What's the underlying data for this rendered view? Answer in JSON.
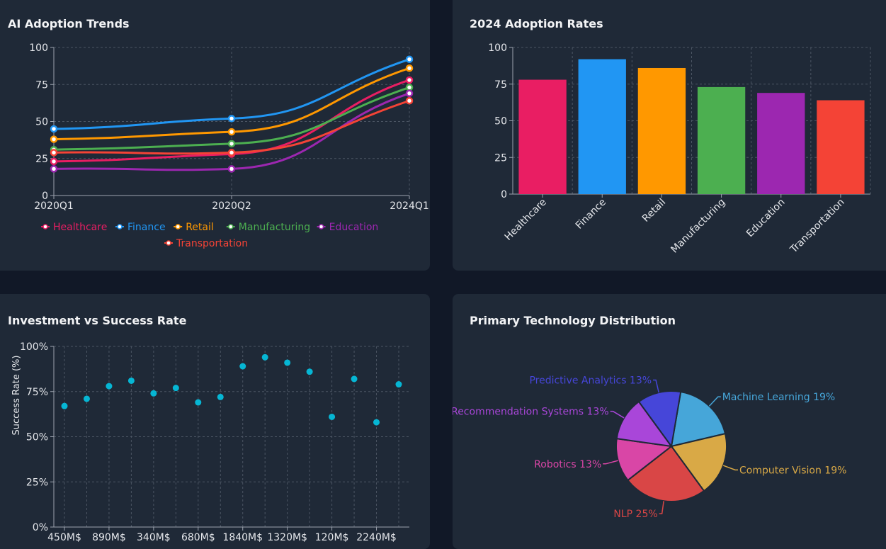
{
  "colors": {
    "background": "#111827",
    "card": "#1f2937",
    "grid": "#4b5563",
    "axis": "#9ca3af",
    "tick_text": "#e5e7eb",
    "scatter": "#06b6d4"
  },
  "chart_data": [
    {
      "id": "trends",
      "type": "line",
      "title": "AI Adoption Trends",
      "categories": [
        "2020Q1",
        "2020Q2",
        "2024Q1"
      ],
      "ylim": [
        0,
        100
      ],
      "yticks": [
        "0",
        "25",
        "50",
        "75",
        "100"
      ],
      "grid": true,
      "legend": "bottom",
      "series": [
        {
          "name": "Healthcare",
          "color": "#e91e63",
          "values": [
            23,
            28,
            78
          ]
        },
        {
          "name": "Finance",
          "color": "#2196f3",
          "values": [
            45,
            52,
            92
          ]
        },
        {
          "name": "Retail",
          "color": "#ff9800",
          "values": [
            38,
            43,
            86
          ]
        },
        {
          "name": "Manufacturing",
          "color": "#4caf50",
          "values": [
            31,
            35,
            73
          ]
        },
        {
          "name": "Education",
          "color": "#9c27b0",
          "values": [
            18,
            18,
            69
          ]
        },
        {
          "name": "Transportation",
          "color": "#f44336",
          "values": [
            29,
            29,
            64
          ]
        }
      ]
    },
    {
      "id": "rates",
      "type": "bar",
      "title": "2024 Adoption Rates",
      "categories": [
        "Healthcare",
        "Finance",
        "Retail",
        "Manufacturing",
        "Education",
        "Transportation"
      ],
      "values": [
        78,
        92,
        86,
        73,
        69,
        64
      ],
      "colors": [
        "#e91e63",
        "#2196f3",
        "#ff9800",
        "#4caf50",
        "#9c27b0",
        "#f44336"
      ],
      "ylim": [
        0,
        100
      ],
      "yticks": [
        "0",
        "25",
        "50",
        "75",
        "100"
      ],
      "grid": true
    },
    {
      "id": "investment",
      "type": "scatter",
      "title": "Investment vs Success Rate",
      "ylabel": "Success Rate (%)",
      "ylim": [
        0,
        100
      ],
      "yticks": [
        "0%",
        "25%",
        "50%",
        "75%",
        "100%"
      ],
      "xticks": [
        "450M$",
        "890M$",
        "340M$",
        "680M$",
        "1840M$",
        "1320M$",
        "120M$",
        "2240M$"
      ],
      "grid": true,
      "x": [
        1,
        2,
        3,
        4,
        5,
        6,
        7,
        8,
        9,
        10,
        11,
        12,
        13,
        14,
        15,
        16
      ],
      "values": [
        67,
        71,
        78,
        81,
        74,
        77,
        69,
        72,
        89,
        94,
        91,
        86,
        61,
        82,
        58,
        79
      ]
    },
    {
      "id": "distribution",
      "type": "pie",
      "title": "Primary Technology Distribution",
      "slices": [
        {
          "label": "Machine Learning 19%",
          "value": 19,
          "color": "#46a6d9"
        },
        {
          "label": "Computer Vision 19%",
          "value": 19,
          "color": "#d9a946"
        },
        {
          "label": "NLP 25%",
          "value": 25,
          "color": "#d94646"
        },
        {
          "label": "Robotics 13%",
          "value": 13,
          "color": "#d946a6"
        },
        {
          "label": "Recommendation Systems 13%",
          "value": 13,
          "color": "#a946d9"
        },
        {
          "label": "Predictive Analytics 13%",
          "value": 13,
          "color": "#4646d9"
        }
      ]
    }
  ]
}
